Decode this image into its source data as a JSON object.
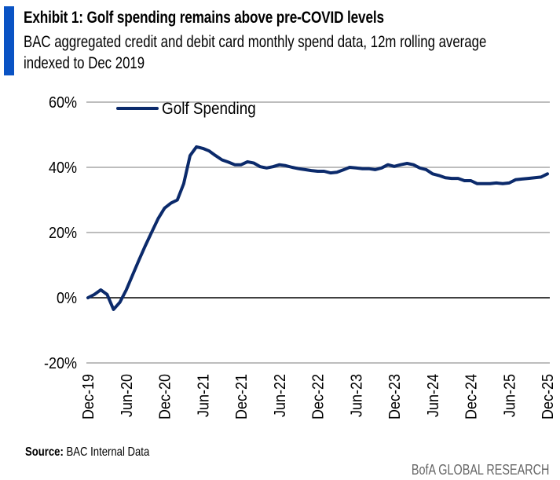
{
  "header": {
    "title": "Exhibit 1: Golf spending remains above pre-COVID levels",
    "subtitle": "BAC aggregated credit and debit card monthly spend data, 12m rolling average indexed to Dec 2019",
    "accent_color": "#0a53c4"
  },
  "footer": {
    "source_label": "Source:",
    "source_text": " BAC Internal Data",
    "brand": "BofA GLOBAL RESEARCH"
  },
  "chart_data": {
    "type": "line",
    "title": "",
    "xlabel": "",
    "ylabel": "",
    "ylim": [
      -20,
      60
    ],
    "y_ticks": [
      60,
      40,
      20,
      0,
      -20
    ],
    "y_tick_labels": [
      "60%",
      "40%",
      "20%",
      "0%",
      "-20%"
    ],
    "x_tick_labels": [
      "Dec-19",
      "Jun-20",
      "Dec-20",
      "Jun-21",
      "Dec-21",
      "Jun-22",
      "Dec-22",
      "Jun-23",
      "Dec-23",
      "Jun-24",
      "Dec-24",
      "Jun-25",
      "Dec-25"
    ],
    "grid": true,
    "legend_position": "top-left",
    "x": [
      "2019-12",
      "2020-01",
      "2020-02",
      "2020-03",
      "2020-04",
      "2020-05",
      "2020-06",
      "2020-07",
      "2020-08",
      "2020-09",
      "2020-10",
      "2020-11",
      "2020-12",
      "2021-01",
      "2021-02",
      "2021-03",
      "2021-04",
      "2021-05",
      "2021-06",
      "2021-07",
      "2021-08",
      "2021-09",
      "2021-10",
      "2021-11",
      "2021-12",
      "2022-01",
      "2022-02",
      "2022-03",
      "2022-04",
      "2022-05",
      "2022-06",
      "2022-07",
      "2022-08",
      "2022-09",
      "2022-10",
      "2022-11",
      "2022-12",
      "2023-01",
      "2023-02",
      "2023-03",
      "2023-04",
      "2023-05",
      "2023-06",
      "2023-07",
      "2023-08",
      "2023-09",
      "2023-10",
      "2023-11",
      "2023-12",
      "2024-01",
      "2024-02",
      "2024-03",
      "2024-04",
      "2024-05",
      "2024-06",
      "2024-07",
      "2024-08",
      "2024-09",
      "2024-10",
      "2024-11",
      "2024-12",
      "2025-01",
      "2025-02",
      "2025-03",
      "2025-04",
      "2025-05",
      "2025-06",
      "2025-07",
      "2025-08",
      "2025-09",
      "2025-10",
      "2025-11",
      "2025-12"
    ],
    "series": [
      {
        "name": "Golf Spending",
        "color": "#0b2a6b",
        "values": [
          0,
          1,
          2.4,
          1,
          -3.6,
          -1.4,
          2.4,
          7,
          11.6,
          16,
          20.2,
          24.3,
          27.5,
          29,
          30,
          35,
          43.6,
          46.3,
          45.8,
          45,
          43.6,
          42.3,
          41.6,
          40.8,
          40.8,
          41.7,
          41.3,
          40.2,
          39.8,
          40.2,
          40.8,
          40.5,
          40,
          39.6,
          39.3,
          39,
          38.8,
          38.8,
          38.3,
          38.5,
          39.2,
          40,
          39.8,
          39.6,
          39.6,
          39.3,
          39.8,
          40.8,
          40.3,
          40.8,
          41.2,
          40.8,
          39.8,
          39.3,
          38,
          37.5,
          36.8,
          36.6,
          36.6,
          35.9,
          35.9,
          35,
          35,
          35,
          35.2,
          35,
          35.2,
          36.2,
          36.4,
          36.6,
          36.8,
          37,
          38
        ]
      }
    ]
  }
}
